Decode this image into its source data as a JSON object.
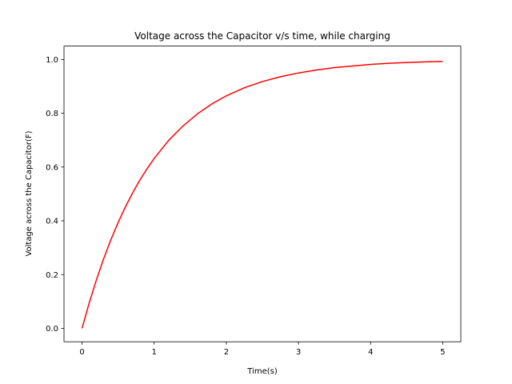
{
  "chart_data": {
    "type": "line",
    "title": "Voltage across the Capacitor v/s time, while charging",
    "xlabel": "Time(s)",
    "ylabel": "Voltage across the Capacitor(F)",
    "xlim": [
      -0.25,
      5.25
    ],
    "ylim": [
      -0.05,
      1.05
    ],
    "x_ticks": [
      0,
      1,
      2,
      3,
      4,
      5
    ],
    "x_tick_labels": [
      "0",
      "1",
      "2",
      "3",
      "4",
      "5"
    ],
    "y_ticks": [
      0.0,
      0.2,
      0.4,
      0.6,
      0.8,
      1.0
    ],
    "y_tick_labels": [
      "0.0",
      "0.2",
      "0.4",
      "0.6",
      "0.8",
      "1.0"
    ],
    "grid": false,
    "series": [
      {
        "color": "#ff0000",
        "x": [
          0,
          0.1,
          0.2,
          0.3,
          0.4,
          0.5,
          0.6,
          0.7,
          0.8,
          0.9,
          1.0,
          1.2,
          1.4,
          1.6,
          1.8,
          2.0,
          2.25,
          2.5,
          2.75,
          3.0,
          3.25,
          3.5,
          3.75,
          4.0,
          4.25,
          4.5,
          4.75,
          5.0
        ],
        "y": [
          0,
          0.095,
          0.181,
          0.259,
          0.33,
          0.393,
          0.451,
          0.503,
          0.551,
          0.593,
          0.632,
          0.699,
          0.753,
          0.798,
          0.835,
          0.865,
          0.895,
          0.918,
          0.936,
          0.95,
          0.961,
          0.97,
          0.976,
          0.982,
          0.986,
          0.989,
          0.991,
          0.993
        ]
      }
    ]
  }
}
